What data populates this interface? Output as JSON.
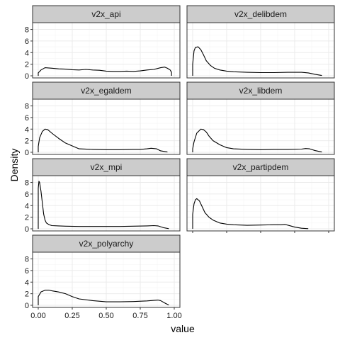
{
  "chart_data": {
    "type": "line",
    "subtype": "density-facets",
    "xlabel": "value",
    "ylabel": "Density",
    "xlim": [
      0,
      1
    ],
    "ylim": [
      0,
      8.8
    ],
    "x_ticks": [
      0,
      0.25,
      0.5,
      0.75,
      1
    ],
    "x_tick_labels": [
      "0.00",
      "0.25",
      "0.50",
      "0.75",
      "1.00"
    ],
    "y_ticks": [
      0,
      2,
      4,
      6,
      8
    ],
    "y_tick_labels": [
      "0",
      "2",
      "4",
      "6",
      "8"
    ],
    "grid": true,
    "colors": {
      "strip": "#cccccc",
      "panel_border": "#333333",
      "grid_major": "#ebebeb",
      "grid_minor": "#f5f5f5",
      "line": "#000000"
    },
    "facets": [
      {
        "name": "v2x_api",
        "x": [
          0.0,
          0.0,
          0.02,
          0.05,
          0.1,
          0.15,
          0.2,
          0.25,
          0.3,
          0.35,
          0.4,
          0.45,
          0.5,
          0.55,
          0.6,
          0.65,
          0.7,
          0.75,
          0.8,
          0.85,
          0.9,
          0.93,
          0.95,
          0.97,
          0.98,
          0.98
        ],
        "y": [
          0.0,
          0.5,
          1.0,
          1.4,
          1.3,
          1.2,
          1.15,
          1.05,
          1.0,
          1.1,
          1.0,
          0.95,
          0.8,
          0.75,
          0.75,
          0.8,
          0.75,
          0.85,
          1.0,
          1.1,
          1.4,
          1.5,
          1.3,
          1.0,
          0.6,
          0.0
        ]
      },
      {
        "name": "v2x_delibdem",
        "x": [
          0.0,
          0.0,
          0.01,
          0.02,
          0.04,
          0.06,
          0.08,
          0.1,
          0.13,
          0.16,
          0.2,
          0.25,
          0.3,
          0.4,
          0.5,
          0.6,
          0.7,
          0.8,
          0.85,
          0.9,
          0.95
        ],
        "y": [
          0.0,
          2.0,
          4.3,
          4.9,
          5.0,
          4.5,
          3.6,
          2.6,
          1.8,
          1.3,
          1.0,
          0.8,
          0.7,
          0.6,
          0.55,
          0.55,
          0.6,
          0.6,
          0.5,
          0.25,
          0.05
        ]
      },
      {
        "name": "v2x_egaldem",
        "x": [
          0.0,
          0.0,
          0.01,
          0.03,
          0.05,
          0.07,
          0.1,
          0.15,
          0.2,
          0.25,
          0.3,
          0.4,
          0.5,
          0.6,
          0.7,
          0.75,
          0.8,
          0.83,
          0.87,
          0.9,
          0.95
        ],
        "y": [
          0.0,
          1.0,
          2.5,
          3.6,
          4.0,
          3.9,
          3.3,
          2.4,
          1.6,
          1.1,
          0.6,
          0.5,
          0.45,
          0.45,
          0.5,
          0.5,
          0.6,
          0.7,
          0.6,
          0.25,
          0.05
        ]
      },
      {
        "name": "v2x_libdem",
        "x": [
          0.0,
          0.0,
          0.01,
          0.03,
          0.06,
          0.08,
          0.1,
          0.12,
          0.15,
          0.2,
          0.25,
          0.3,
          0.4,
          0.5,
          0.6,
          0.7,
          0.8,
          0.83,
          0.86,
          0.9,
          0.95
        ],
        "y": [
          0.0,
          0.6,
          1.8,
          3.3,
          4.0,
          3.9,
          3.5,
          2.8,
          2.0,
          1.3,
          0.8,
          0.6,
          0.5,
          0.45,
          0.5,
          0.5,
          0.55,
          0.65,
          0.6,
          0.3,
          0.05
        ]
      },
      {
        "name": "v2x_mpi",
        "x": [
          0.0,
          0.0,
          0.005,
          0.01,
          0.02,
          0.03,
          0.04,
          0.05,
          0.06,
          0.08,
          0.1,
          0.15,
          0.2,
          0.3,
          0.4,
          0.5,
          0.6,
          0.7,
          0.8,
          0.85,
          0.88,
          0.92,
          0.96
        ],
        "y": [
          0.0,
          7.0,
          8.2,
          8.0,
          6.5,
          4.5,
          2.5,
          1.5,
          1.0,
          0.7,
          0.55,
          0.5,
          0.45,
          0.4,
          0.4,
          0.4,
          0.4,
          0.45,
          0.5,
          0.55,
          0.5,
          0.2,
          0.02
        ]
      },
      {
        "name": "v2x_partipdem",
        "x": [
          0.0,
          0.0,
          0.01,
          0.02,
          0.03,
          0.05,
          0.07,
          0.09,
          0.12,
          0.15,
          0.2,
          0.25,
          0.3,
          0.4,
          0.5,
          0.6,
          0.65,
          0.68,
          0.72,
          0.75,
          0.8,
          0.85
        ],
        "y": [
          0.0,
          2.5,
          4.3,
          5.0,
          5.2,
          4.8,
          3.8,
          2.8,
          2.0,
          1.5,
          1.0,
          0.8,
          0.7,
          0.6,
          0.65,
          0.7,
          0.7,
          0.75,
          0.5,
          0.3,
          0.1,
          0.02
        ]
      },
      {
        "name": "v2x_polyarchy",
        "x": [
          0.0,
          0.0,
          0.02,
          0.05,
          0.08,
          0.1,
          0.15,
          0.2,
          0.25,
          0.3,
          0.4,
          0.5,
          0.6,
          0.7,
          0.8,
          0.85,
          0.88,
          0.9,
          0.93,
          0.96
        ],
        "y": [
          0.0,
          1.5,
          2.3,
          2.6,
          2.6,
          2.5,
          2.3,
          2.0,
          1.5,
          1.1,
          0.8,
          0.6,
          0.6,
          0.65,
          0.75,
          0.85,
          0.9,
          0.8,
          0.4,
          0.05
        ]
      }
    ]
  }
}
